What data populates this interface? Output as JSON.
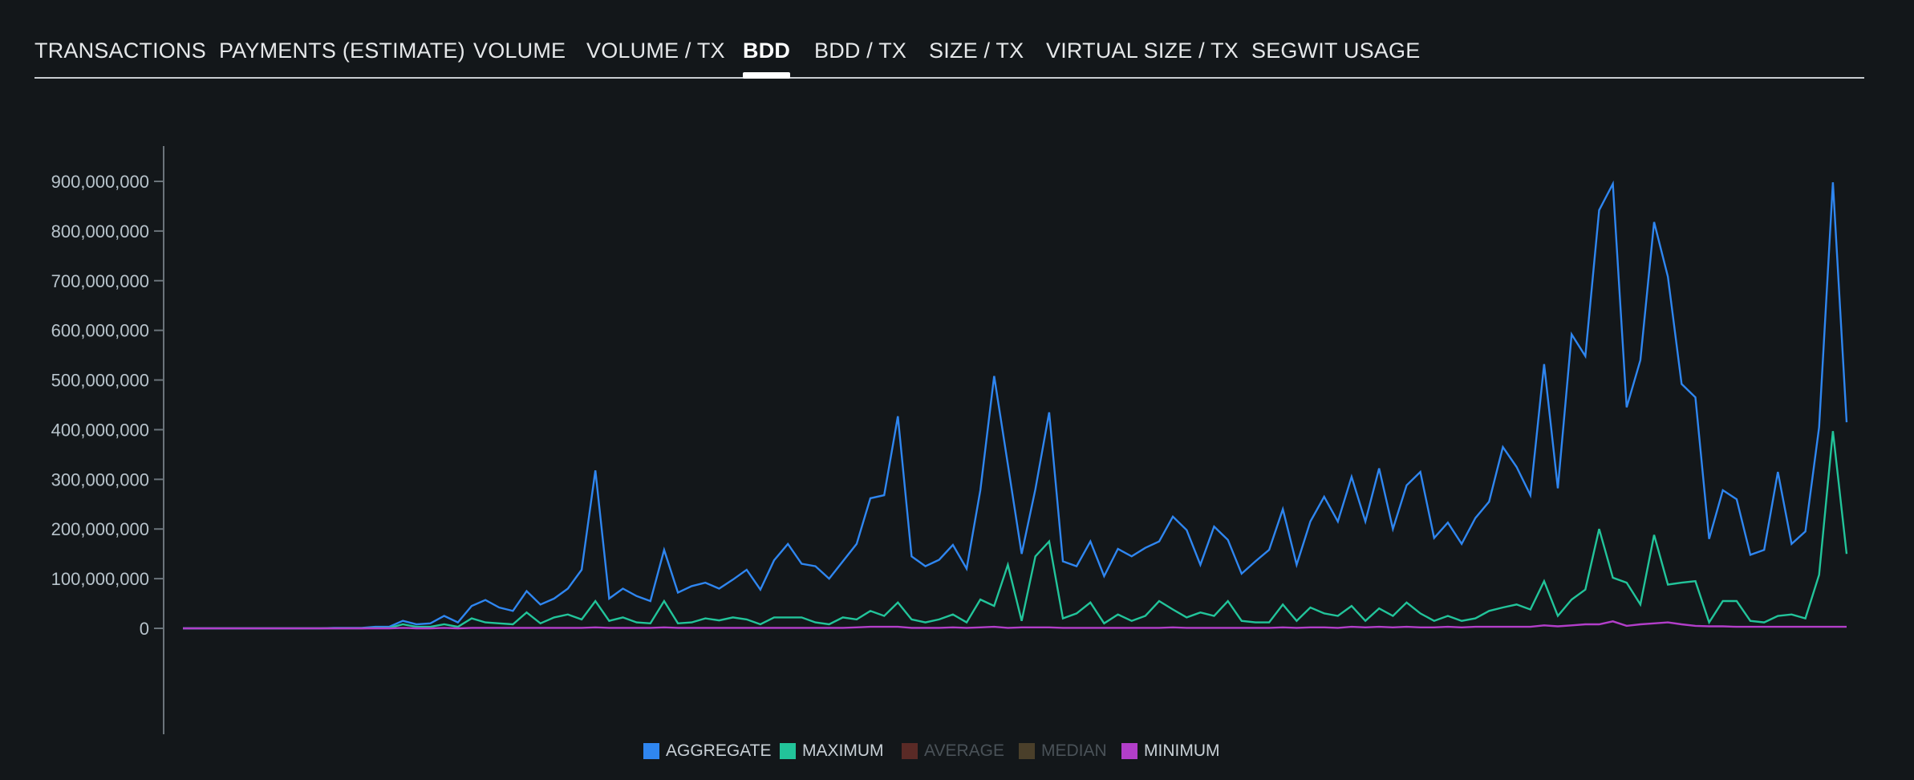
{
  "tabs": [
    {
      "label": "TRANSACTIONS",
      "active": false
    },
    {
      "label": "PAYMENTS (ESTIMATE)",
      "active": false
    },
    {
      "label": "VOLUME",
      "active": false
    },
    {
      "label": "VOLUME / TX",
      "active": false
    },
    {
      "label": "BDD",
      "active": true
    },
    {
      "label": "BDD / TX",
      "active": false
    },
    {
      "label": "SIZE / TX",
      "active": false
    },
    {
      "label": "VIRTUAL SIZE / TX",
      "active": false
    },
    {
      "label": "SEGWIT USAGE",
      "active": false
    }
  ],
  "colors": {
    "aggregate": "#2f86f0",
    "maximum": "#22c49a",
    "average": "#5a2a26",
    "median": "#4a3f2a",
    "minimum": "#b23ec9",
    "legend_text_active": "#c8d0d6",
    "legend_text_inactive": "#4a5258"
  },
  "chart_data": {
    "type": "line",
    "ylim": [
      0,
      900000000
    ],
    "yticks": [
      "0",
      "100,000,000",
      "200,000,000",
      "300,000,000",
      "400,000,000",
      "500,000,000",
      "600,000,000",
      "700,000,000",
      "800,000,000",
      "900,000,000"
    ],
    "legend": [
      {
        "name": "AGGREGATE",
        "visible": true
      },
      {
        "name": "MAXIMUM",
        "visible": true
      },
      {
        "name": "AVERAGE",
        "visible": false
      },
      {
        "name": "MEDIAN",
        "visible": false
      },
      {
        "name": "MINIMUM",
        "visible": true
      }
    ],
    "series": [
      {
        "name": "AGGREGATE",
        "values": [
          0,
          0,
          0,
          0,
          0,
          0,
          0,
          0,
          0,
          0,
          0,
          1000000,
          1000000,
          1000000,
          3000000,
          3000000,
          15000000,
          8000000,
          10000000,
          25000000,
          12000000,
          45000000,
          57000000,
          42000000,
          35000000,
          75000000,
          48000000,
          60000000,
          80000000,
          118000000,
          318000000,
          60000000,
          80000000,
          65000000,
          55000000,
          158000000,
          72000000,
          85000000,
          92000000,
          80000000,
          98000000,
          118000000,
          78000000,
          137000000,
          170000000,
          130000000,
          125000000,
          100000000,
          135000000,
          170000000,
          262000000,
          268000000,
          427000000,
          145000000,
          125000000,
          138000000,
          168000000,
          120000000,
          278000000,
          508000000,
          330000000,
          150000000,
          280000000,
          435000000,
          135000000,
          125000000,
          175000000,
          105000000,
          160000000,
          145000000,
          162000000,
          175000000,
          225000000,
          198000000,
          128000000,
          205000000,
          178000000,
          110000000,
          135000000,
          158000000,
          240000000,
          128000000,
          215000000,
          265000000,
          215000000,
          305000000,
          215000000,
          322000000,
          200000000,
          288000000,
          315000000,
          182000000,
          213000000,
          170000000,
          222000000,
          255000000,
          365000000,
          325000000,
          268000000,
          532000000,
          282000000,
          592000000,
          548000000,
          842000000,
          895000000,
          445000000,
          540000000,
          818000000,
          708000000,
          492000000,
          465000000,
          180000000,
          278000000,
          260000000,
          148000000,
          158000000,
          315000000,
          170000000,
          195000000,
          405000000,
          898000000,
          415000000
        ]
      },
      {
        "name": "MAXIMUM",
        "values": [
          0,
          0,
          0,
          0,
          0,
          0,
          0,
          0,
          0,
          0,
          0,
          0,
          0,
          0,
          1000000,
          1000000,
          8000000,
          3000000,
          3000000,
          8000000,
          3000000,
          20000000,
          12000000,
          10000000,
          8000000,
          32000000,
          10000000,
          22000000,
          28000000,
          18000000,
          55000000,
          15000000,
          22000000,
          12000000,
          10000000,
          55000000,
          10000000,
          12000000,
          20000000,
          16000000,
          22000000,
          18000000,
          8000000,
          22000000,
          22000000,
          22000000,
          12000000,
          8000000,
          22000000,
          18000000,
          35000000,
          25000000,
          52000000,
          18000000,
          12000000,
          18000000,
          28000000,
          12000000,
          58000000,
          45000000,
          128000000,
          15000000,
          145000000,
          175000000,
          20000000,
          30000000,
          52000000,
          10000000,
          28000000,
          15000000,
          25000000,
          55000000,
          38000000,
          22000000,
          32000000,
          25000000,
          55000000,
          15000000,
          12000000,
          12000000,
          48000000,
          15000000,
          42000000,
          30000000,
          25000000,
          45000000,
          15000000,
          40000000,
          25000000,
          52000000,
          30000000,
          15000000,
          25000000,
          15000000,
          20000000,
          35000000,
          42000000,
          48000000,
          38000000,
          95000000,
          25000000,
          58000000,
          78000000,
          200000000,
          102000000,
          92000000,
          48000000,
          188000000,
          88000000,
          92000000,
          95000000,
          12000000,
          55000000,
          55000000,
          15000000,
          12000000,
          25000000,
          28000000,
          20000000,
          108000000,
          397000000,
          150000000
        ]
      },
      {
        "name": "MINIMUM",
        "values": [
          0,
          0,
          0,
          0,
          0,
          0,
          0,
          0,
          0,
          0,
          0,
          0,
          0,
          0,
          0,
          0,
          1000000,
          0,
          0,
          1000000,
          0,
          1000000,
          1000000,
          1000000,
          1000000,
          1000000,
          1000000,
          1000000,
          1000000,
          1000000,
          2000000,
          1000000,
          1000000,
          1000000,
          1000000,
          2000000,
          1000000,
          1000000,
          1000000,
          1000000,
          1000000,
          1000000,
          1000000,
          1000000,
          1000000,
          1000000,
          1000000,
          1000000,
          1000000,
          2000000,
          3000000,
          3000000,
          3000000,
          1000000,
          1000000,
          1000000,
          2000000,
          1000000,
          2000000,
          3000000,
          1000000,
          2000000,
          2000000,
          2000000,
          1000000,
          1000000,
          1000000,
          1000000,
          1000000,
          1000000,
          1000000,
          1000000,
          2000000,
          1000000,
          1000000,
          1000000,
          1000000,
          1000000,
          1000000,
          1000000,
          2000000,
          1000000,
          2000000,
          2000000,
          1000000,
          3000000,
          2000000,
          3000000,
          2000000,
          3000000,
          2000000,
          2000000,
          3000000,
          2000000,
          3000000,
          3000000,
          3000000,
          3000000,
          3000000,
          6000000,
          4000000,
          6000000,
          8000000,
          8000000,
          14000000,
          5000000,
          8000000,
          10000000,
          12000000,
          8000000,
          5000000,
          4000000,
          4000000,
          3000000,
          3000000,
          3000000,
          3000000,
          3000000,
          3000000,
          3000000,
          3000000,
          3000000
        ]
      }
    ]
  }
}
